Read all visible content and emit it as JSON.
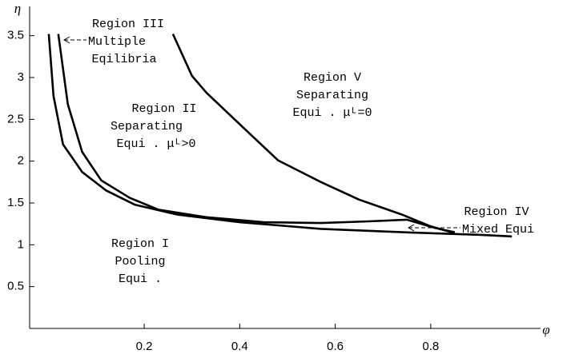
{
  "chart_data": {
    "type": "line",
    "x_label": "φ",
    "y_label": "η",
    "xlim": [
      -0.04,
      1.03
    ],
    "ylim": [
      0,
      3.85
    ],
    "xticks": [
      0.2,
      0.4,
      0.6,
      0.8
    ],
    "yticks": [
      0.5,
      1,
      1.5,
      2,
      2.5,
      3,
      3.5
    ],
    "grid": false,
    "series": [
      {
        "color": "#000000",
        "x": [
          0.0,
          0.01,
          0.03,
          0.07,
          0.12,
          0.18,
          0.27,
          0.4,
          0.57,
          0.74,
          0.9,
          0.97
        ],
        "values": [
          3.52,
          2.78,
          2.2,
          1.87,
          1.65,
          1.48,
          1.36,
          1.27,
          1.19,
          1.15,
          1.12,
          1.1
        ]
      },
      {
        "color": "#000000",
        "x": [
          0.02,
          0.04,
          0.07,
          0.11,
          0.17,
          0.23,
          0.33,
          0.45,
          0.57,
          0.67,
          0.75,
          0.81,
          0.85
        ],
        "values": [
          3.52,
          2.68,
          2.11,
          1.77,
          1.56,
          1.42,
          1.33,
          1.27,
          1.26,
          1.28,
          1.3,
          1.2,
          1.15
        ]
      },
      {
        "color": "#000000",
        "x": [
          0.26,
          0.3,
          0.33,
          0.4,
          0.48,
          0.57,
          0.65,
          0.74,
          0.8,
          0.85
        ],
        "values": [
          3.52,
          3.02,
          2.82,
          2.44,
          2.01,
          1.75,
          1.54,
          1.36,
          1.22,
          1.14
        ]
      }
    ],
    "annotations": [
      {
        "lines": [
          "Region  III",
          "Multiple",
          "Eqilibria"
        ]
      },
      {
        "lines": [
          "Region  II",
          "Separating",
          "Equi . μᴸ>0"
        ]
      },
      {
        "lines": [
          "Region  V",
          "Separating",
          "Equi . μᴸ=0"
        ]
      },
      {
        "lines": [
          "Region  IV",
          "Mixed  Equi"
        ]
      },
      {
        "lines": [
          "Region  I",
          "Pooling",
          "Equi ."
        ]
      }
    ]
  }
}
